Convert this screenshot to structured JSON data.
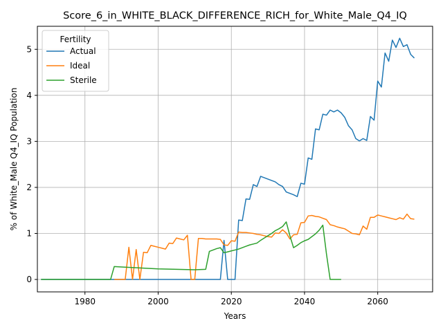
{
  "chart_data": {
    "type": "line",
    "title": "Score_6_in_WHITE_BLACK_DIFFERENCE_RICH_for_White_Male_Q4_IQ",
    "xlabel": "Years",
    "ylabel": "% of White_Male Q4_IQ Population",
    "xlim": [
      1967,
      2075
    ],
    "ylim": [
      -0.27,
      5.5
    ],
    "xticks": [
      1980,
      2000,
      2020,
      2040,
      2060
    ],
    "yticks": [
      0,
      1,
      2,
      3,
      4,
      5
    ],
    "grid": true,
    "legend": {
      "title": "Fertility",
      "position": "top-left"
    },
    "series": [
      {
        "name": "Actual",
        "color": "#1f77b4",
        "points": [
          [
            1968,
            0
          ],
          [
            1975,
            0
          ],
          [
            1985,
            0
          ],
          [
            1995,
            0
          ],
          [
            2005,
            0
          ],
          [
            2015,
            0
          ],
          [
            2017,
            0
          ],
          [
            2018,
            0.85
          ],
          [
            2019,
            0
          ],
          [
            2020,
            0
          ],
          [
            2021,
            0
          ],
          [
            2022,
            1.29
          ],
          [
            2023,
            1.28
          ],
          [
            2024,
            1.75
          ],
          [
            2025,
            1.74
          ],
          [
            2026,
            2.06
          ],
          [
            2027,
            2.02
          ],
          [
            2028,
            2.24
          ],
          [
            2029,
            2.21
          ],
          [
            2030,
            2.18
          ],
          [
            2031,
            2.15
          ],
          [
            2032,
            2.12
          ],
          [
            2033,
            2.06
          ],
          [
            2034,
            2.02
          ],
          [
            2035,
            1.9
          ],
          [
            2036,
            1.87
          ],
          [
            2037,
            1.84
          ],
          [
            2038,
            1.8
          ],
          [
            2039,
            2.09
          ],
          [
            2040,
            2.07
          ],
          [
            2041,
            2.64
          ],
          [
            2042,
            2.61
          ],
          [
            2043,
            3.27
          ],
          [
            2044,
            3.25
          ],
          [
            2045,
            3.59
          ],
          [
            2046,
            3.57
          ],
          [
            2047,
            3.68
          ],
          [
            2048,
            3.64
          ],
          [
            2049,
            3.68
          ],
          [
            2050,
            3.62
          ],
          [
            2051,
            3.52
          ],
          [
            2052,
            3.34
          ],
          [
            2053,
            3.25
          ],
          [
            2054,
            3.06
          ],
          [
            2055,
            3.01
          ],
          [
            2056,
            3.06
          ],
          [
            2057,
            3.02
          ],
          [
            2058,
            3.54
          ],
          [
            2059,
            3.46
          ],
          [
            2060,
            4.31
          ],
          [
            2061,
            4.18
          ],
          [
            2062,
            4.92
          ],
          [
            2063,
            4.74
          ],
          [
            2064,
            5.2
          ],
          [
            2065,
            5.04
          ],
          [
            2066,
            5.24
          ],
          [
            2067,
            5.06
          ],
          [
            2068,
            5.1
          ],
          [
            2069,
            4.89
          ],
          [
            2070,
            4.81
          ]
        ]
      },
      {
        "name": "Ideal",
        "color": "#ff7f0e",
        "points": [
          [
            1988,
            0
          ],
          [
            1991,
            0
          ],
          [
            1992,
            0.7
          ],
          [
            1993,
            0
          ],
          [
            1994,
            0.65
          ],
          [
            1995,
            0
          ],
          [
            1996,
            0.59
          ],
          [
            1997,
            0.58
          ],
          [
            1998,
            0.74
          ],
          [
            1999,
            0.72
          ],
          [
            2000,
            0.7
          ],
          [
            2001,
            0.68
          ],
          [
            2002,
            0.66
          ],
          [
            2003,
            0.79
          ],
          [
            2004,
            0.78
          ],
          [
            2005,
            0.9
          ],
          [
            2006,
            0.88
          ],
          [
            2007,
            0.86
          ],
          [
            2008,
            0.96
          ],
          [
            2009,
            0
          ],
          [
            2010,
            0
          ],
          [
            2011,
            0.89
          ],
          [
            2012,
            0.89
          ],
          [
            2013,
            0.88
          ],
          [
            2014,
            0.88
          ],
          [
            2015,
            0.88
          ],
          [
            2016,
            0.88
          ],
          [
            2017,
            0.87
          ],
          [
            2018,
            0.75
          ],
          [
            2019,
            0.74
          ],
          [
            2020,
            0.84
          ],
          [
            2021,
            0.83
          ],
          [
            2022,
            1.03
          ],
          [
            2023,
            1.02
          ],
          [
            2024,
            1.02
          ],
          [
            2025,
            1.01
          ],
          [
            2026,
            1.0
          ],
          [
            2027,
            0.98
          ],
          [
            2028,
            0.97
          ],
          [
            2029,
            0.95
          ],
          [
            2030,
            0.93
          ],
          [
            2031,
            0.92
          ],
          [
            2032,
            1.01
          ],
          [
            2033,
            1.0
          ],
          [
            2034,
            1.08
          ],
          [
            2035,
            1.01
          ],
          [
            2036,
            0.88
          ],
          [
            2037,
            0.97
          ],
          [
            2038,
            0.98
          ],
          [
            2039,
            1.23
          ],
          [
            2040,
            1.24
          ],
          [
            2041,
            1.38
          ],
          [
            2042,
            1.39
          ],
          [
            2043,
            1.37
          ],
          [
            2044,
            1.36
          ],
          [
            2045,
            1.33
          ],
          [
            2046,
            1.3
          ],
          [
            2047,
            1.19
          ],
          [
            2048,
            1.17
          ],
          [
            2049,
            1.14
          ],
          [
            2050,
            1.12
          ],
          [
            2051,
            1.1
          ],
          [
            2052,
            1.05
          ],
          [
            2053,
            1.0
          ],
          [
            2054,
            0.99
          ],
          [
            2055,
            0.97
          ],
          [
            2056,
            1.16
          ],
          [
            2057,
            1.09
          ],
          [
            2058,
            1.35
          ],
          [
            2059,
            1.35
          ],
          [
            2060,
            1.4
          ],
          [
            2061,
            1.38
          ],
          [
            2062,
            1.36
          ],
          [
            2063,
            1.34
          ],
          [
            2064,
            1.32
          ],
          [
            2065,
            1.3
          ],
          [
            2066,
            1.34
          ],
          [
            2067,
            1.31
          ],
          [
            2068,
            1.42
          ],
          [
            2069,
            1.32
          ],
          [
            2070,
            1.31
          ]
        ]
      },
      {
        "name": "Sterile",
        "color": "#2ca02c",
        "points": [
          [
            1968,
            0
          ],
          [
            1975,
            0
          ],
          [
            1980,
            0
          ],
          [
            1987,
            0
          ],
          [
            1988,
            0.28
          ],
          [
            1990,
            0.27
          ],
          [
            1995,
            0.25
          ],
          [
            2000,
            0.23
          ],
          [
            2005,
            0.22
          ],
          [
            2010,
            0.21
          ],
          [
            2013,
            0.22
          ],
          [
            2014,
            0.61
          ],
          [
            2015,
            0.64
          ],
          [
            2016,
            0.67
          ],
          [
            2017,
            0.69
          ],
          [
            2018,
            0.58
          ],
          [
            2019,
            0.6
          ],
          [
            2020,
            0.62
          ],
          [
            2021,
            0.64
          ],
          [
            2022,
            0.66
          ],
          [
            2023,
            0.69
          ],
          [
            2024,
            0.72
          ],
          [
            2025,
            0.75
          ],
          [
            2026,
            0.77
          ],
          [
            2027,
            0.79
          ],
          [
            2028,
            0.85
          ],
          [
            2029,
            0.9
          ],
          [
            2030,
            0.95
          ],
          [
            2031,
            1.0
          ],
          [
            2032,
            1.06
          ],
          [
            2033,
            1.1
          ],
          [
            2034,
            1.15
          ],
          [
            2035,
            1.25
          ],
          [
            2036,
            0.95
          ],
          [
            2037,
            0.69
          ],
          [
            2038,
            0.74
          ],
          [
            2039,
            0.8
          ],
          [
            2040,
            0.84
          ],
          [
            2041,
            0.87
          ],
          [
            2042,
            0.93
          ],
          [
            2043,
            0.99
          ],
          [
            2044,
            1.07
          ],
          [
            2045,
            1.18
          ],
          [
            2046,
            0.55
          ],
          [
            2047,
            0
          ],
          [
            2048,
            0
          ],
          [
            2050,
            0
          ]
        ]
      }
    ]
  }
}
